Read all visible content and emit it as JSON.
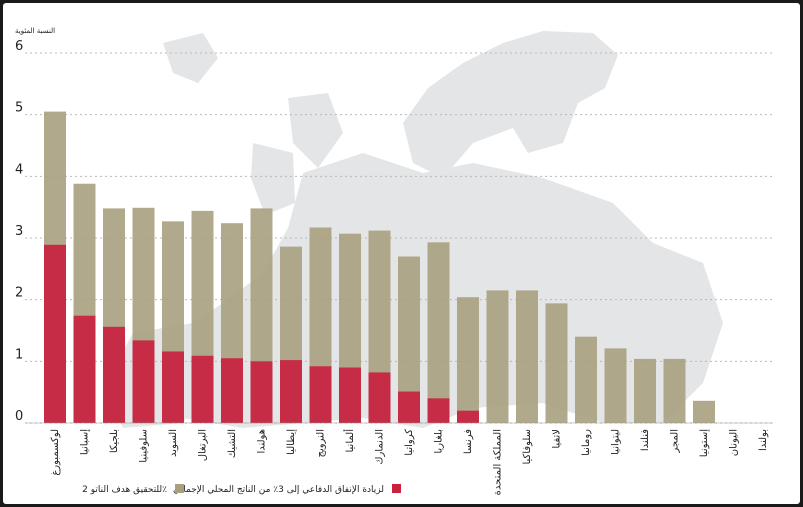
{
  "chart_data": {
    "type": "bar",
    "stacked": "overlay",
    "ylabel": "النسبة المئوية",
    "ylim": [
      0,
      6
    ],
    "yticks": [
      0,
      1,
      2,
      3,
      4,
      5,
      6
    ],
    "grid": true,
    "legend_position": "bottom",
    "categories": [
      "لوكسمبورغ",
      "إسبانيا",
      "بلجيكا",
      "سلوفينيا",
      "السويد",
      "البرتغال",
      "التشيك",
      "هولندا",
      "إيطاليا",
      "النرويج",
      "ألمانيا",
      "الدنمارك",
      "كرواتيا",
      "بلغاريا",
      "فرنسا",
      "المملكة المتحدة",
      "سلوفاكيا",
      "لاتفيا",
      "رومانيا",
      "ليتوانيا",
      "فنلندا",
      "المجر",
      "إستونيا",
      "اليونان",
      "بولندا"
    ],
    "series": [
      {
        "name": "للتحقيق هدف الناتو 2٪",
        "color": "#a8a07f",
        "values": [
          5.05,
          3.88,
          3.48,
          3.49,
          3.27,
          3.44,
          3.24,
          3.48,
          2.86,
          3.17,
          3.07,
          3.12,
          2.7,
          2.93,
          2.04,
          2.15,
          2.15,
          1.94,
          1.4,
          1.21,
          1.04,
          1.04,
          0.36,
          0,
          0
        ]
      },
      {
        "name": "لزيادة الإنفاق الدفاعي إلى 3٪ من الناتج المحلي الإجمالي",
        "color": "#c8223f",
        "values": [
          2.89,
          1.74,
          1.56,
          1.34,
          1.16,
          1.09,
          1.05,
          1.0,
          1.02,
          0.92,
          0.9,
          0.82,
          0.51,
          0.4,
          0.2,
          0,
          0,
          0,
          0,
          0,
          0,
          0,
          0,
          0,
          0
        ]
      }
    ]
  }
}
